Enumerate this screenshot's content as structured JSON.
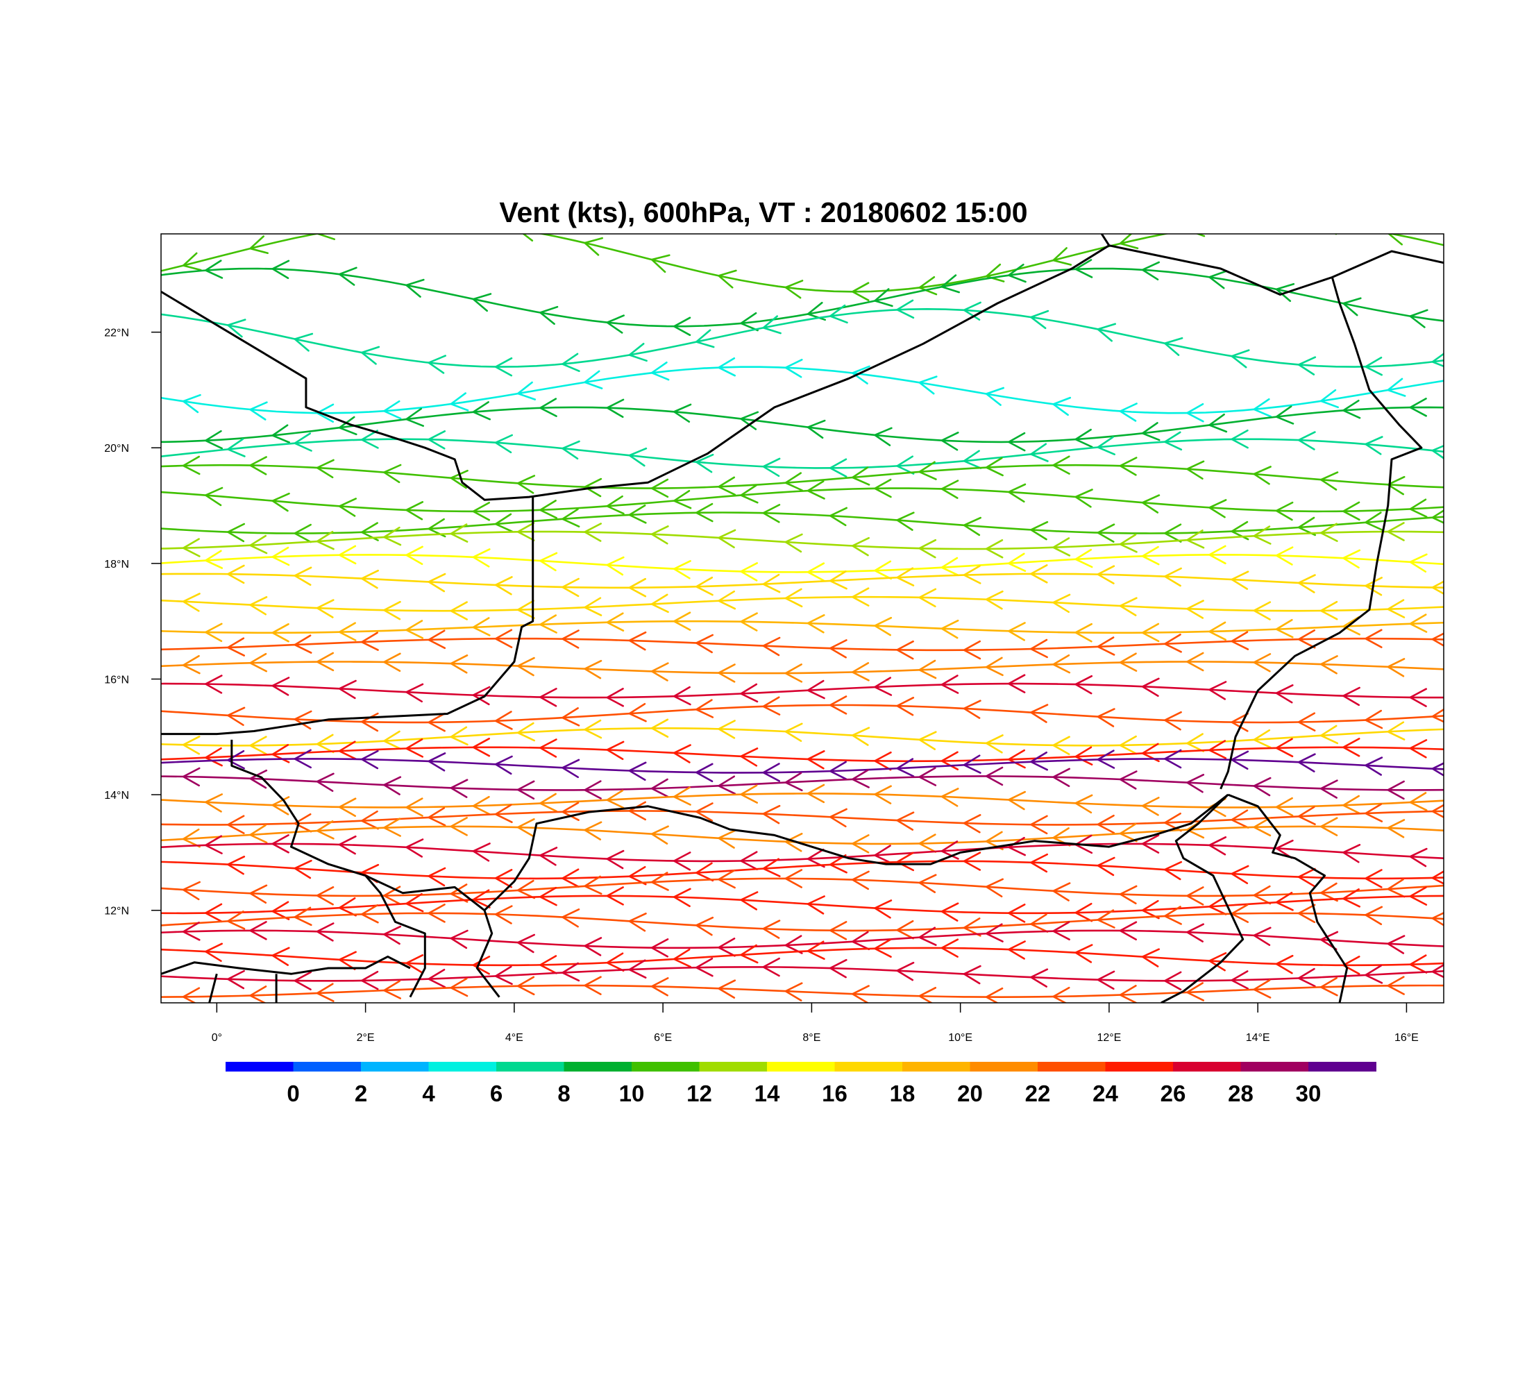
{
  "title": "Vent (kts), 600hPa, VT : 20180602  15:00",
  "map": {
    "lon_range": [
      -0.75,
      16.5
    ],
    "lat_range": [
      10.4,
      23.7
    ],
    "lon_ticks": [
      {
        "value": 0,
        "label": "0°"
      },
      {
        "value": 2,
        "label": "2°E"
      },
      {
        "value": 4,
        "label": "4°E"
      },
      {
        "value": 6,
        "label": "6°E"
      },
      {
        "value": 8,
        "label": "8°E"
      },
      {
        "value": 10,
        "label": "10°E"
      },
      {
        "value": 12,
        "label": "12°E"
      },
      {
        "value": 14,
        "label": "14°E"
      },
      {
        "value": 16,
        "label": "16°E"
      }
    ],
    "lat_ticks": [
      {
        "value": 12,
        "label": "12°N"
      },
      {
        "value": 14,
        "label": "14°N"
      },
      {
        "value": 16,
        "label": "16°N"
      },
      {
        "value": 18,
        "label": "18°N"
      },
      {
        "value": 20,
        "label": "20°N"
      },
      {
        "value": 22,
        "label": "22°N"
      }
    ],
    "flow_direction": "east-to-west",
    "streamlines": [
      {
        "lat": 23.3,
        "speed": 11,
        "wave": 0.6
      },
      {
        "lat": 22.6,
        "speed": 9,
        "wave": 0.5
      },
      {
        "lat": 21.9,
        "speed": 6,
        "wave": 0.5
      },
      {
        "lat": 21.0,
        "speed": 5,
        "wave": 0.4
      },
      {
        "lat": 20.4,
        "speed": 9,
        "wave": 0.3
      },
      {
        "lat": 19.9,
        "speed": 7,
        "wave": 0.25
      },
      {
        "lat": 19.5,
        "speed": 10,
        "wave": 0.2
      },
      {
        "lat": 19.1,
        "speed": 11,
        "wave": 0.2
      },
      {
        "lat": 18.7,
        "speed": 10,
        "wave": 0.18
      },
      {
        "lat": 18.4,
        "speed": 13,
        "wave": 0.15
      },
      {
        "lat": 18.0,
        "speed": 15,
        "wave": 0.15
      },
      {
        "lat": 17.7,
        "speed": 17,
        "wave": 0.12
      },
      {
        "lat": 17.3,
        "speed": 16,
        "wave": 0.12
      },
      {
        "lat": 16.9,
        "speed": 18,
        "wave": 0.1
      },
      {
        "lat": 16.6,
        "speed": 23,
        "wave": 0.1
      },
      {
        "lat": 16.2,
        "speed": 21,
        "wave": 0.1
      },
      {
        "lat": 15.8,
        "speed": 27,
        "wave": 0.12
      },
      {
        "lat": 15.4,
        "speed": 22,
        "wave": 0.15
      },
      {
        "lat": 15.0,
        "speed": 17,
        "wave": 0.15
      },
      {
        "lat": 14.7,
        "speed": 25,
        "wave": 0.12
      },
      {
        "lat": 14.5,
        "speed": 30,
        "wave": 0.12
      },
      {
        "lat": 14.2,
        "speed": 28,
        "wave": 0.12
      },
      {
        "lat": 13.9,
        "speed": 21,
        "wave": 0.12
      },
      {
        "lat": 13.6,
        "speed": 23,
        "wave": 0.12
      },
      {
        "lat": 13.3,
        "speed": 20,
        "wave": 0.15
      },
      {
        "lat": 13.0,
        "speed": 27,
        "wave": 0.15
      },
      {
        "lat": 12.7,
        "speed": 24,
        "wave": 0.15
      },
      {
        "lat": 12.4,
        "speed": 23,
        "wave": 0.15
      },
      {
        "lat": 12.1,
        "speed": 25,
        "wave": 0.15
      },
      {
        "lat": 11.8,
        "speed": 22,
        "wave": 0.15
      },
      {
        "lat": 11.5,
        "speed": 26,
        "wave": 0.15
      },
      {
        "lat": 11.2,
        "speed": 24,
        "wave": 0.15
      },
      {
        "lat": 10.9,
        "speed": 27,
        "wave": 0.12
      },
      {
        "lat": 10.6,
        "speed": 23,
        "wave": 0.1
      }
    ],
    "borders": [
      [
        [
          -0.75,
          22.7
        ],
        [
          1.2,
          21.2
        ],
        [
          1.2,
          20.7
        ],
        [
          1.8,
          20.4
        ],
        [
          2.2,
          20.25
        ],
        [
          2.8,
          20.0
        ],
        [
          3.2,
          19.8
        ],
        [
          3.3,
          19.4
        ],
        [
          3.6,
          19.1
        ],
        [
          4.2,
          19.15
        ],
        [
          5.0,
          19.3
        ],
        [
          5.8,
          19.4
        ],
        [
          6.6,
          19.9
        ],
        [
          7.5,
          20.7
        ],
        [
          8.5,
          21.2
        ],
        [
          9.5,
          21.8
        ],
        [
          10.5,
          22.5
        ],
        [
          11.5,
          23.1
        ],
        [
          12.0,
          23.5
        ],
        [
          11.9,
          23.7
        ]
      ],
      [
        [
          12.0,
          23.5
        ],
        [
          13.5,
          23.1
        ],
        [
          14.3,
          22.65
        ],
        [
          15.0,
          22.95
        ],
        [
          15.8,
          23.4
        ],
        [
          16.5,
          23.2
        ]
      ],
      [
        [
          15.0,
          22.95
        ],
        [
          15.1,
          22.5
        ],
        [
          15.3,
          21.8
        ],
        [
          15.5,
          21.0
        ],
        [
          15.9,
          20.4
        ],
        [
          16.2,
          20.0
        ],
        [
          15.8,
          19.8
        ],
        [
          15.75,
          19.0
        ],
        [
          15.6,
          18.0
        ],
        [
          15.5,
          17.2
        ],
        [
          15.1,
          16.8
        ],
        [
          14.5,
          16.4
        ],
        [
          14.0,
          15.8
        ],
        [
          13.7,
          15.0
        ],
        [
          13.6,
          14.4
        ],
        [
          13.5,
          14.1
        ]
      ],
      [
        [
          4.25,
          19.15
        ],
        [
          4.25,
          17.0
        ],
        [
          4.1,
          16.9
        ],
        [
          4.0,
          16.3
        ],
        [
          3.6,
          15.7
        ],
        [
          3.1,
          15.4
        ],
        [
          1.5,
          15.3
        ],
        [
          0.5,
          15.1
        ],
        [
          0.0,
          15.05
        ],
        [
          -0.75,
          15.05
        ]
      ],
      [
        [
          0.2,
          14.95
        ],
        [
          0.2,
          14.5
        ],
        [
          0.6,
          14.3
        ],
        [
          0.9,
          13.9
        ],
        [
          1.1,
          13.5
        ],
        [
          1.0,
          13.1
        ],
        [
          1.5,
          12.8
        ],
        [
          2.0,
          12.6
        ],
        [
          2.2,
          12.3
        ],
        [
          2.4,
          11.8
        ],
        [
          2.8,
          11.6
        ],
        [
          2.8,
          11.0
        ],
        [
          2.6,
          10.5
        ]
      ],
      [
        [
          2.0,
          12.6
        ],
        [
          2.5,
          12.3
        ],
        [
          3.2,
          12.4
        ],
        [
          3.6,
          12.0
        ],
        [
          3.7,
          11.6
        ],
        [
          3.5,
          11.0
        ],
        [
          3.8,
          10.5
        ]
      ],
      [
        [
          3.6,
          12.0
        ],
        [
          4.0,
          12.5
        ],
        [
          4.2,
          12.9
        ],
        [
          4.3,
          13.5
        ],
        [
          5.0,
          13.7
        ],
        [
          5.8,
          13.8
        ],
        [
          6.5,
          13.6
        ],
        [
          6.9,
          13.4
        ],
        [
          7.5,
          13.3
        ],
        [
          8.0,
          13.1
        ],
        [
          8.5,
          12.9
        ],
        [
          9.0,
          12.8
        ],
        [
          9.6,
          12.8
        ],
        [
          10.0,
          13.0
        ],
        [
          11.0,
          13.2
        ],
        [
          12.0,
          13.1
        ],
        [
          12.6,
          13.3
        ],
        [
          13.1,
          13.5
        ],
        [
          13.6,
          14.0
        ]
      ],
      [
        [
          13.6,
          14.0
        ],
        [
          14.0,
          13.8
        ],
        [
          14.3,
          13.3
        ],
        [
          14.2,
          13.0
        ],
        [
          14.5,
          12.9
        ],
        [
          14.9,
          12.6
        ],
        [
          14.7,
          12.3
        ],
        [
          14.8,
          11.8
        ],
        [
          15.2,
          11.0
        ],
        [
          15.1,
          10.4
        ]
      ],
      [
        [
          13.6,
          14.0
        ],
        [
          13.2,
          13.5
        ],
        [
          12.9,
          13.2
        ],
        [
          13.0,
          12.9
        ],
        [
          13.4,
          12.6
        ],
        [
          13.8,
          11.5
        ],
        [
          13.5,
          11.1
        ],
        [
          13.0,
          10.6
        ],
        [
          12.7,
          10.4
        ]
      ],
      [
        [
          -0.75,
          10.9
        ],
        [
          -0.3,
          11.1
        ],
        [
          0.3,
          11.0
        ],
        [
          1.0,
          10.9
        ],
        [
          1.5,
          11.0
        ],
        [
          2.0,
          11.0
        ],
        [
          2.3,
          11.2
        ],
        [
          2.6,
          11.0
        ]
      ],
      [
        [
          0.8,
          10.9
        ],
        [
          0.8,
          10.4
        ]
      ],
      [
        [
          0.0,
          10.9
        ],
        [
          -0.1,
          10.4
        ]
      ]
    ]
  },
  "colorbar": {
    "colors": [
      "#0000ff",
      "#0060ff",
      "#00b4ff",
      "#00f0e0",
      "#00d890",
      "#00b030",
      "#40c000",
      "#a0dc00",
      "#ffff00",
      "#ffd800",
      "#ffb400",
      "#ff8c00",
      "#ff5000",
      "#ff1c00",
      "#d80030",
      "#a00060",
      "#600090"
    ],
    "labels": [
      "0",
      "2",
      "4",
      "6",
      "8",
      "10",
      "12",
      "14",
      "16",
      "18",
      "20",
      "22",
      "24",
      "26",
      "28",
      "30"
    ]
  }
}
